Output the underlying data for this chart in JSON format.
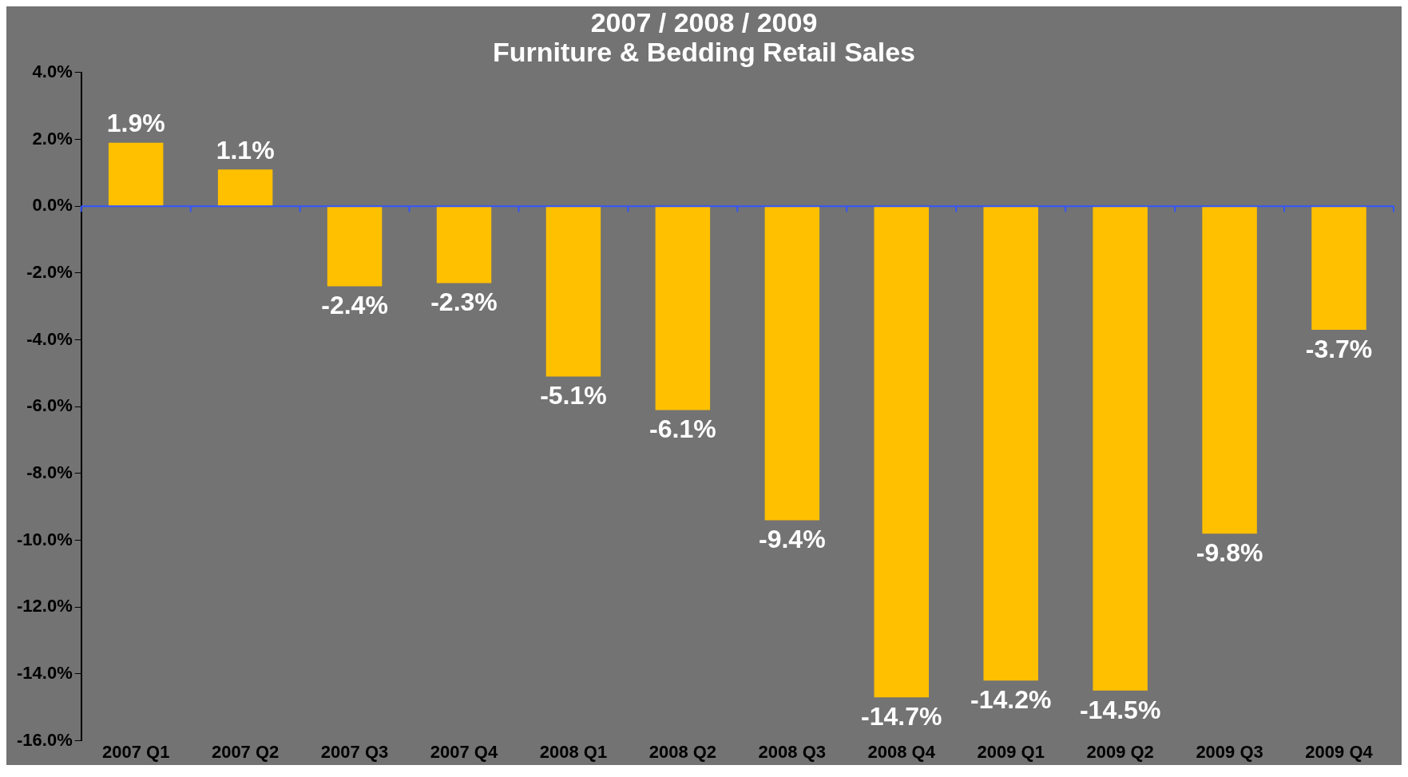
{
  "chart_data": {
    "type": "bar",
    "title": "2007 / 2008 / 2009",
    "subtitle": "Furniture & Bedding Retail Sales",
    "categories": [
      "2007 Q1",
      "2007 Q2",
      "2007 Q3",
      "2007 Q4",
      "2008 Q1",
      "2008 Q2",
      "2008 Q3",
      "2008 Q4",
      "2009 Q1",
      "2009 Q2",
      "2009 Q3",
      "2009 Q4"
    ],
    "values": [
      1.9,
      1.1,
      -2.4,
      -2.3,
      -5.1,
      -6.1,
      -9.4,
      -14.7,
      -14.2,
      -14.5,
      -9.8,
      -3.7
    ],
    "value_labels": [
      "1.9%",
      "1.1%",
      "-2.4%",
      "-2.3%",
      "-5.1%",
      "-6.1%",
      "-9.4%",
      "-14.7%",
      "-14.2%",
      "-14.5%",
      "-9.8%",
      "-3.7%"
    ],
    "color": "#ffc000",
    "ylim": [
      -16,
      4
    ],
    "yticks": [
      {
        "value": -16,
        "label": "-16.0%"
      },
      {
        "value": -14,
        "label": "-14.0%"
      },
      {
        "value": -12,
        "label": "-12.0%"
      },
      {
        "value": -10,
        "label": "-10.0%"
      },
      {
        "value": -8,
        "label": "-8.0%"
      },
      {
        "value": -6,
        "label": "-6.0%"
      },
      {
        "value": -4,
        "label": "-4.0%"
      },
      {
        "value": -2,
        "label": "-2.0%"
      },
      {
        "value": 0,
        "label": "0.0%"
      },
      {
        "value": 2,
        "label": "2.0%"
      },
      {
        "value": 4,
        "label": "4.0%"
      }
    ],
    "ref_lines": [
      {
        "axis": "y",
        "value": 0,
        "color": "#3355ff"
      }
    ],
    "grid": false,
    "legend": false
  }
}
